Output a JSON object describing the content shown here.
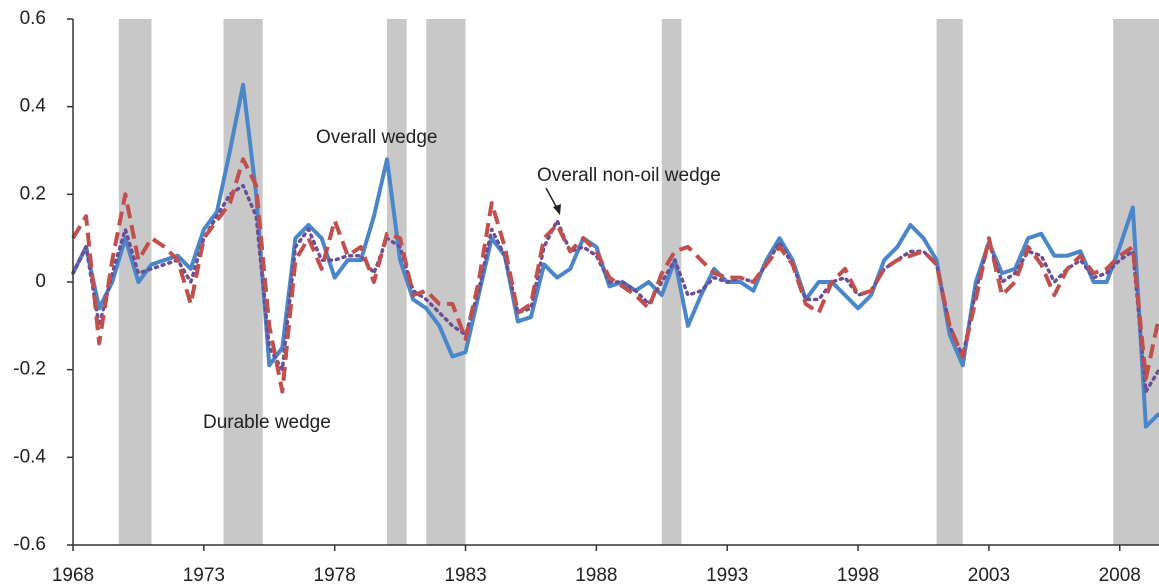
{
  "chart_data": {
    "type": "line",
    "x": [
      1968,
      1968.5,
      1969,
      1969.5,
      1970,
      1970.5,
      1971,
      1971.5,
      1972,
      1972.5,
      1973,
      1973.5,
      1974,
      1974.5,
      1975,
      1975.5,
      1976,
      1976.5,
      1977,
      1977.5,
      1978,
      1978.5,
      1979,
      1979.5,
      1980,
      1980.5,
      1981,
      1981.5,
      1982,
      1982.5,
      1983,
      1983.5,
      1984,
      1984.5,
      1985,
      1985.5,
      1986,
      1986.5,
      1987,
      1987.5,
      1988,
      1988.5,
      1989,
      1989.5,
      1990,
      1990.5,
      1991,
      1991.5,
      1992,
      1992.5,
      1993,
      1993.5,
      1994,
      1994.5,
      1995,
      1995.5,
      1996,
      1996.5,
      1997,
      1997.5,
      1998,
      1998.5,
      1999,
      1999.5,
      2000,
      2000.5,
      2001,
      2001.5,
      2002,
      2002.5,
      2003,
      2003.5,
      2004,
      2004.5,
      2005,
      2005.5,
      2006,
      2006.5,
      2007,
      2007.5,
      2008,
      2008.5,
      2009,
      2009.5
    ],
    "series": [
      {
        "name": "Overall wedge",
        "color": "#4a86c8",
        "style": "solid",
        "values": [
          0.02,
          0.08,
          -0.06,
          0.0,
          0.1,
          0.0,
          0.04,
          0.05,
          0.06,
          0.03,
          0.12,
          0.16,
          0.3,
          0.45,
          0.2,
          -0.19,
          -0.15,
          0.1,
          0.13,
          0.1,
          0.01,
          0.05,
          0.05,
          0.15,
          0.28,
          0.05,
          -0.04,
          -0.06,
          -0.1,
          -0.17,
          -0.16,
          -0.03,
          0.1,
          0.06,
          -0.09,
          -0.08,
          0.04,
          0.01,
          0.03,
          0.1,
          0.08,
          -0.01,
          0.0,
          -0.02,
          0.0,
          -0.03,
          0.05,
          -0.1,
          -0.03,
          0.03,
          0.0,
          0.0,
          -0.02,
          0.05,
          0.1,
          0.05,
          -0.04,
          0.0,
          0.0,
          -0.03,
          -0.06,
          -0.03,
          0.05,
          0.08,
          0.13,
          0.1,
          0.05,
          -0.12,
          -0.19,
          0.0,
          0.09,
          0.02,
          0.03,
          0.1,
          0.11,
          0.06,
          0.06,
          0.07,
          0.0,
          0.0,
          0.08,
          0.17,
          -0.33,
          -0.3
        ]
      },
      {
        "name": "Overall non-oil wedge",
        "color": "#6b4f96",
        "style": "dotted",
        "values": [
          0.02,
          0.08,
          -0.1,
          0.02,
          0.12,
          0.02,
          0.03,
          0.04,
          0.05,
          0.0,
          0.1,
          0.15,
          0.2,
          0.22,
          0.15,
          -0.15,
          -0.2,
          0.08,
          0.12,
          0.05,
          0.05,
          0.06,
          0.06,
          0.02,
          0.1,
          0.08,
          -0.02,
          -0.04,
          -0.07,
          -0.1,
          -0.12,
          -0.02,
          0.12,
          0.06,
          -0.07,
          -0.06,
          0.08,
          0.14,
          0.07,
          0.08,
          0.06,
          0.0,
          0.0,
          -0.02,
          -0.05,
          0.0,
          0.05,
          -0.03,
          -0.02,
          0.01,
          0.0,
          0.01,
          0.0,
          0.04,
          0.09,
          0.04,
          -0.04,
          -0.04,
          0.0,
          0.01,
          -0.03,
          -0.02,
          0.03,
          0.05,
          0.07,
          0.07,
          0.04,
          -0.1,
          -0.17,
          -0.02,
          0.09,
          0.0,
          0.02,
          0.07,
          0.06,
          0.0,
          0.03,
          0.05,
          0.01,
          0.02,
          0.05,
          0.07,
          -0.25,
          -0.2
        ]
      },
      {
        "name": "Durable wedge",
        "color": "#c0504d",
        "style": "dashed",
        "values": [
          0.1,
          0.15,
          -0.14,
          0.05,
          0.2,
          0.05,
          0.1,
          0.08,
          0.05,
          -0.05,
          0.1,
          0.14,
          0.18,
          0.28,
          0.22,
          -0.1,
          -0.25,
          0.05,
          0.1,
          0.03,
          0.14,
          0.06,
          0.08,
          0.0,
          0.11,
          0.1,
          -0.03,
          -0.02,
          -0.05,
          -0.05,
          -0.13,
          0.0,
          0.18,
          0.08,
          -0.07,
          -0.05,
          0.1,
          0.13,
          0.07,
          0.1,
          0.07,
          0.01,
          -0.01,
          -0.03,
          -0.06,
          0.02,
          0.07,
          0.08,
          0.05,
          0.02,
          0.01,
          0.01,
          0.0,
          0.04,
          0.08,
          0.04,
          -0.05,
          -0.07,
          0.0,
          0.03,
          -0.03,
          -0.02,
          0.03,
          0.05,
          0.06,
          0.07,
          0.04,
          -0.1,
          -0.17,
          -0.04,
          0.1,
          -0.03,
          0.0,
          0.08,
          0.04,
          -0.03,
          0.03,
          0.06,
          0.02,
          0.03,
          0.06,
          0.08,
          -0.22,
          -0.08
        ]
      }
    ],
    "shaded_periods": [
      [
        1969.75,
        1971.0
      ],
      [
        1973.75,
        1975.25
      ],
      [
        1980.0,
        1980.75
      ],
      [
        1981.5,
        1983.0
      ],
      [
        1990.5,
        1991.25
      ],
      [
        2001.0,
        2002.0
      ],
      [
        2007.75,
        2009.5
      ]
    ],
    "shade_color": "#c8c8c8",
    "xlim": [
      1968,
      2009.5
    ],
    "xticks": [
      1968,
      1973,
      1978,
      1983,
      1988,
      1993,
      1998,
      2003,
      2008
    ],
    "ylim": [
      -0.6,
      0.6
    ],
    "yticks": [
      0.6,
      0.4,
      0.2,
      0,
      -0.2,
      -0.4,
      -0.6
    ],
    "grid": false
  }
}
